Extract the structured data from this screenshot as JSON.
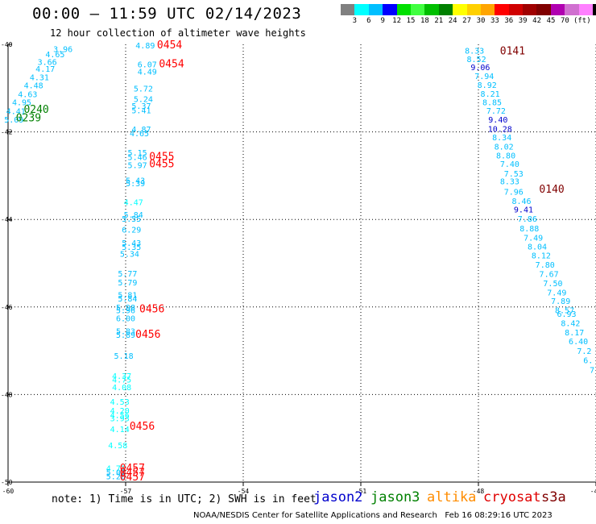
{
  "header": {
    "title": "00:00 – 11:59 UTC 02/14/2023",
    "subtitle": "12 hour collection of altimeter wave heights"
  },
  "colorbar": {
    "colors": [
      "#808080",
      "#00ffff",
      "#00bfff",
      "#0000ff",
      "#00e000",
      "#40ff40",
      "#00bf00",
      "#008000",
      "#ffff00",
      "#ffd000",
      "#ffa500",
      "#ff0000",
      "#d00000",
      "#a00000",
      "#800000",
      "#b000b0",
      "#d070d0",
      "#ff80ff",
      "#000000"
    ],
    "labels": [
      "3",
      "6",
      "9",
      "12",
      "15",
      "18",
      "21",
      "24",
      "27",
      "30",
      "33",
      "36",
      "39",
      "42",
      "45",
      "70",
      "(ft)"
    ]
  },
  "map": {
    "x_axis": {
      "min": -60,
      "max": -45,
      "ticks": [
        -60,
        -57,
        -54,
        -51,
        -48,
        -45
      ],
      "tick_labels": [
        "-60",
        "-57",
        "-54",
        "-51",
        "-48",
        "-45"
      ]
    },
    "y_axis": {
      "min": -50,
      "max": -40,
      "ticks": [
        -40,
        -42,
        -44,
        -46,
        -48,
        -50
      ],
      "tick_labels": [
        "-40",
        "-42",
        "-44",
        "-46",
        "-48",
        "-50"
      ]
    },
    "grid": "dotted",
    "wave_heights": [
      {
        "lon": -58.6,
        "lat": -40.1,
        "v": "3.96",
        "c": "#00bfff"
      },
      {
        "lon": -58.8,
        "lat": -40.22,
        "v": "4.65",
        "c": "#00bfff"
      },
      {
        "lon": -59.0,
        "lat": -40.4,
        "v": "3.66",
        "c": "#00bfff"
      },
      {
        "lon": -59.05,
        "lat": -40.55,
        "v": "4.17",
        "c": "#00bfff"
      },
      {
        "lon": -59.2,
        "lat": -40.75,
        "v": "4.31",
        "c": "#00bfff"
      },
      {
        "lon": -59.35,
        "lat": -40.93,
        "v": "4.48",
        "c": "#00bfff"
      },
      {
        "lon": -59.5,
        "lat": -41.13,
        "v": "4.63",
        "c": "#00bfff"
      },
      {
        "lon": -59.65,
        "lat": -41.32,
        "v": "4.95",
        "c": "#00bfff"
      },
      {
        "lon": -59.8,
        "lat": -41.52,
        "v": "4.41",
        "c": "#00bfff"
      },
      {
        "lon": -59.85,
        "lat": -41.71,
        "v": "5.09",
        "c": "#00bfff"
      },
      {
        "lon": -56.5,
        "lat": -40.02,
        "v": "4.89",
        "c": "#00bfff"
      },
      {
        "lon": -56.45,
        "lat": -40.45,
        "v": "6.07",
        "c": "#00bfff"
      },
      {
        "lon": -56.45,
        "lat": -40.62,
        "v": "4.49",
        "c": "#00bfff"
      },
      {
        "lon": -56.55,
        "lat": -41.0,
        "v": "5.72",
        "c": "#00bfff"
      },
      {
        "lon": -56.55,
        "lat": -41.24,
        "v": "5.24",
        "c": "#00bfff"
      },
      {
        "lon": -56.6,
        "lat": -41.4,
        "v": "5.37",
        "c": "#00bfff"
      },
      {
        "lon": -56.6,
        "lat": -41.5,
        "v": "5.41",
        "c": "#00bfff"
      },
      {
        "lon": -56.6,
        "lat": -41.93,
        "v": "4.87",
        "c": "#00bfff"
      },
      {
        "lon": -56.65,
        "lat": -42.03,
        "v": "4.65",
        "c": "#00bfff"
      },
      {
        "lon": -56.7,
        "lat": -42.47,
        "v": "5.15",
        "c": "#00bfff"
      },
      {
        "lon": -56.7,
        "lat": -42.57,
        "v": "5.46",
        "c": "#00bfff"
      },
      {
        "lon": -56.7,
        "lat": -42.75,
        "v": "5.97",
        "c": "#00bfff"
      },
      {
        "lon": -56.75,
        "lat": -43.1,
        "v": "5.43",
        "c": "#00bfff"
      },
      {
        "lon": -56.75,
        "lat": -43.17,
        "v": "5.39",
        "c": "#00bfff"
      },
      {
        "lon": -56.8,
        "lat": -43.6,
        "v": "4.47",
        "c": "#00ffff"
      },
      {
        "lon": -56.8,
        "lat": -43.89,
        "v": "5.84",
        "c": "#00bfff"
      },
      {
        "lon": -56.85,
        "lat": -43.98,
        "v": "5.55",
        "c": "#00bfff"
      },
      {
        "lon": -56.85,
        "lat": -44.23,
        "v": "6.29",
        "c": "#00bfff"
      },
      {
        "lon": -56.85,
        "lat": -44.53,
        "v": "5.43",
        "c": "#00bfff"
      },
      {
        "lon": -56.85,
        "lat": -44.62,
        "v": "5.35",
        "c": "#00bfff"
      },
      {
        "lon": -56.9,
        "lat": -44.78,
        "v": "5.34",
        "c": "#00bfff"
      },
      {
        "lon": -56.95,
        "lat": -45.23,
        "v": "5.77",
        "c": "#00bfff"
      },
      {
        "lon": -56.95,
        "lat": -45.43,
        "v": "5.79",
        "c": "#00bfff"
      },
      {
        "lon": -56.95,
        "lat": -45.72,
        "v": "5.81",
        "c": "#00bfff"
      },
      {
        "lon": -56.95,
        "lat": -45.8,
        "v": "5.84",
        "c": "#00bfff"
      },
      {
        "lon": -57.0,
        "lat": -46.0,
        "v": "5.98",
        "c": "#00bfff"
      },
      {
        "lon": -57.0,
        "lat": -46.07,
        "v": "5.96",
        "c": "#00bfff"
      },
      {
        "lon": -57.0,
        "lat": -46.25,
        "v": "6.00",
        "c": "#00bfff"
      },
      {
        "lon": -57.0,
        "lat": -46.55,
        "v": "5.83",
        "c": "#00bfff"
      },
      {
        "lon": -57.0,
        "lat": -46.63,
        "v": "5.89",
        "c": "#00bfff"
      },
      {
        "lon": -57.05,
        "lat": -47.11,
        "v": "5.18",
        "c": "#00bfff"
      },
      {
        "lon": -57.1,
        "lat": -47.57,
        "v": "4.37",
        "c": "#00ffff"
      },
      {
        "lon": -57.1,
        "lat": -47.65,
        "v": "4.75",
        "c": "#00ffff"
      },
      {
        "lon": -57.1,
        "lat": -47.83,
        "v": "4.08",
        "c": "#00ffff"
      },
      {
        "lon": -57.15,
        "lat": -48.16,
        "v": "4.53",
        "c": "#00ffff"
      },
      {
        "lon": -57.15,
        "lat": -48.36,
        "v": "4.20",
        "c": "#00ffff"
      },
      {
        "lon": -57.15,
        "lat": -48.46,
        "v": "4.56",
        "c": "#00ffff"
      },
      {
        "lon": -57.15,
        "lat": -48.54,
        "v": "3.93",
        "c": "#00ffff"
      },
      {
        "lon": -57.15,
        "lat": -48.78,
        "v": "4.14",
        "c": "#00ffff"
      },
      {
        "lon": -57.2,
        "lat": -49.15,
        "v": "4.58",
        "c": "#00ffff"
      },
      {
        "lon": -57.25,
        "lat": -49.68,
        "v": "4.71",
        "c": "#00ffff"
      },
      {
        "lon": -57.25,
        "lat": -49.77,
        "v": "5.07",
        "c": "#00bfff"
      },
      {
        "lon": -57.25,
        "lat": -49.86,
        "v": "5.20",
        "c": "#00bfff"
      },
      {
        "lon": -48.1,
        "lat": -40.14,
        "v": "8.33",
        "c": "#00bfff"
      },
      {
        "lon": -48.05,
        "lat": -40.33,
        "v": "8.52",
        "c": "#00bfff"
      },
      {
        "lon": -47.95,
        "lat": -40.52,
        "v": "9.06",
        "c": "#0000cc"
      },
      {
        "lon": -47.85,
        "lat": -40.72,
        "v": "7.94",
        "c": "#00bfff"
      },
      {
        "lon": -47.78,
        "lat": -40.92,
        "v": "8.92",
        "c": "#00bfff"
      },
      {
        "lon": -47.7,
        "lat": -41.12,
        "v": "8.21",
        "c": "#00bfff"
      },
      {
        "lon": -47.65,
        "lat": -41.32,
        "v": "8.85",
        "c": "#00bfff"
      },
      {
        "lon": -47.55,
        "lat": -41.51,
        "v": "7.72",
        "c": "#00bfff"
      },
      {
        "lon": -47.5,
        "lat": -41.71,
        "v": "9.40",
        "c": "#0000cc"
      },
      {
        "lon": -47.45,
        "lat": -41.92,
        "v": "10.28",
        "c": "#0000cc"
      },
      {
        "lon": -47.4,
        "lat": -42.12,
        "v": "8.34",
        "c": "#00bfff"
      },
      {
        "lon": -47.35,
        "lat": -42.33,
        "v": "8.02",
        "c": "#00bfff"
      },
      {
        "lon": -47.3,
        "lat": -42.53,
        "v": "8.80",
        "c": "#00bfff"
      },
      {
        "lon": -47.2,
        "lat": -42.73,
        "v": "7.40",
        "c": "#00bfff"
      },
      {
        "lon": -47.1,
        "lat": -42.95,
        "v": "7.53",
        "c": "#00bfff"
      },
      {
        "lon": -47.2,
        "lat": -43.12,
        "v": "8.33",
        "c": "#00bfff"
      },
      {
        "lon": -47.1,
        "lat": -43.36,
        "v": "7.96",
        "c": "#00bfff"
      },
      {
        "lon": -46.9,
        "lat": -43.57,
        "v": "8.46",
        "c": "#00bfff"
      },
      {
        "lon": -46.85,
        "lat": -43.77,
        "v": "9.41",
        "c": "#0000cc"
      },
      {
        "lon": -46.75,
        "lat": -43.98,
        "v": "7.86",
        "c": "#00bfff"
      },
      {
        "lon": -46.7,
        "lat": -44.2,
        "v": "8.88",
        "c": "#00bfff"
      },
      {
        "lon": -46.6,
        "lat": -44.41,
        "v": "7.49",
        "c": "#00bfff"
      },
      {
        "lon": -46.5,
        "lat": -44.61,
        "v": "8.04",
        "c": "#00bfff"
      },
      {
        "lon": -46.4,
        "lat": -44.82,
        "v": "8.12",
        "c": "#00bfff"
      },
      {
        "lon": -46.3,
        "lat": -45.03,
        "v": "7.80",
        "c": "#00bfff"
      },
      {
        "lon": -46.2,
        "lat": -45.24,
        "v": "7.67",
        "c": "#00bfff"
      },
      {
        "lon": -46.1,
        "lat": -45.45,
        "v": "7.50",
        "c": "#00bfff"
      },
      {
        "lon": -46.0,
        "lat": -45.66,
        "v": "7.49",
        "c": "#00bfff"
      },
      {
        "lon": -45.9,
        "lat": -45.86,
        "v": "7.89",
        "c": "#00bfff"
      },
      {
        "lon": -45.8,
        "lat": -46.07,
        "v": "8.57",
        "c": "#00bfff"
      },
      {
        "lon": -45.75,
        "lat": -46.15,
        "v": "6.93",
        "c": "#00bfff"
      },
      {
        "lon": -45.65,
        "lat": -46.36,
        "v": "8.42",
        "c": "#00bfff"
      },
      {
        "lon": -45.55,
        "lat": -46.57,
        "v": "8.17",
        "c": "#00bfff"
      },
      {
        "lon": -45.45,
        "lat": -46.78,
        "v": "6.40",
        "c": "#00bfff"
      },
      {
        "lon": -45.3,
        "lat": -47.0,
        "v": "7.2",
        "c": "#00bfff"
      },
      {
        "lon": -45.2,
        "lat": -47.21,
        "v": "6.",
        "c": "#00bfff"
      },
      {
        "lon": -45.1,
        "lat": -47.43,
        "v": "7",
        "c": "#00bfff"
      }
    ],
    "pass_times": [
      {
        "lon": -59.6,
        "lat": -41.47,
        "t": "0240",
        "c": "#008000"
      },
      {
        "lon": -59.8,
        "lat": -41.67,
        "t": "0239",
        "c": "#008000"
      },
      {
        "lon": -56.2,
        "lat": -40.0,
        "t": "0454",
        "c": "#ff0000"
      },
      {
        "lon": -56.15,
        "lat": -40.43,
        "t": "0454",
        "c": "#ff0000"
      },
      {
        "lon": -56.4,
        "lat": -42.55,
        "t": "0455",
        "c": "#ff0000"
      },
      {
        "lon": -56.4,
        "lat": -42.72,
        "t": "0455",
        "c": "#ff0000"
      },
      {
        "lon": -56.65,
        "lat": -46.03,
        "t": "0456",
        "c": "#ff0000"
      },
      {
        "lon": -56.75,
        "lat": -46.61,
        "t": "0456",
        "c": "#ff0000"
      },
      {
        "lon": -56.9,
        "lat": -48.71,
        "t": "0456",
        "c": "#ff0000"
      },
      {
        "lon": -57.15,
        "lat": -49.67,
        "t": "0457",
        "c": "#ff0000"
      },
      {
        "lon": -57.15,
        "lat": -49.77,
        "t": "0457",
        "c": "#ff0000"
      },
      {
        "lon": -57.15,
        "lat": -49.87,
        "t": "0457",
        "c": "#ff0000"
      },
      {
        "lon": -47.45,
        "lat": -40.14,
        "t": "0141",
        "c": "#800000"
      },
      {
        "lon": -46.45,
        "lat": -43.3,
        "t": "0140",
        "c": "#800000"
      }
    ]
  },
  "legend": {
    "note": "note: 1) Time is in UTC; 2) SWH is in feet",
    "satellites": [
      {
        "name": "jason2",
        "color": "#0000cc"
      },
      {
        "name": "jason3",
        "color": "#008000"
      },
      {
        "name": "altika",
        "color": "#ff8c00"
      },
      {
        "name": "cryosat",
        "color": "#e00000"
      },
      {
        "name": "s3a",
        "color": "#800000"
      }
    ]
  },
  "footer": {
    "credit": "NOAA/NESDIS Center for Satellite Applications and Research",
    "timestamp": "Feb 16 08:29:16 UTC 2023"
  }
}
